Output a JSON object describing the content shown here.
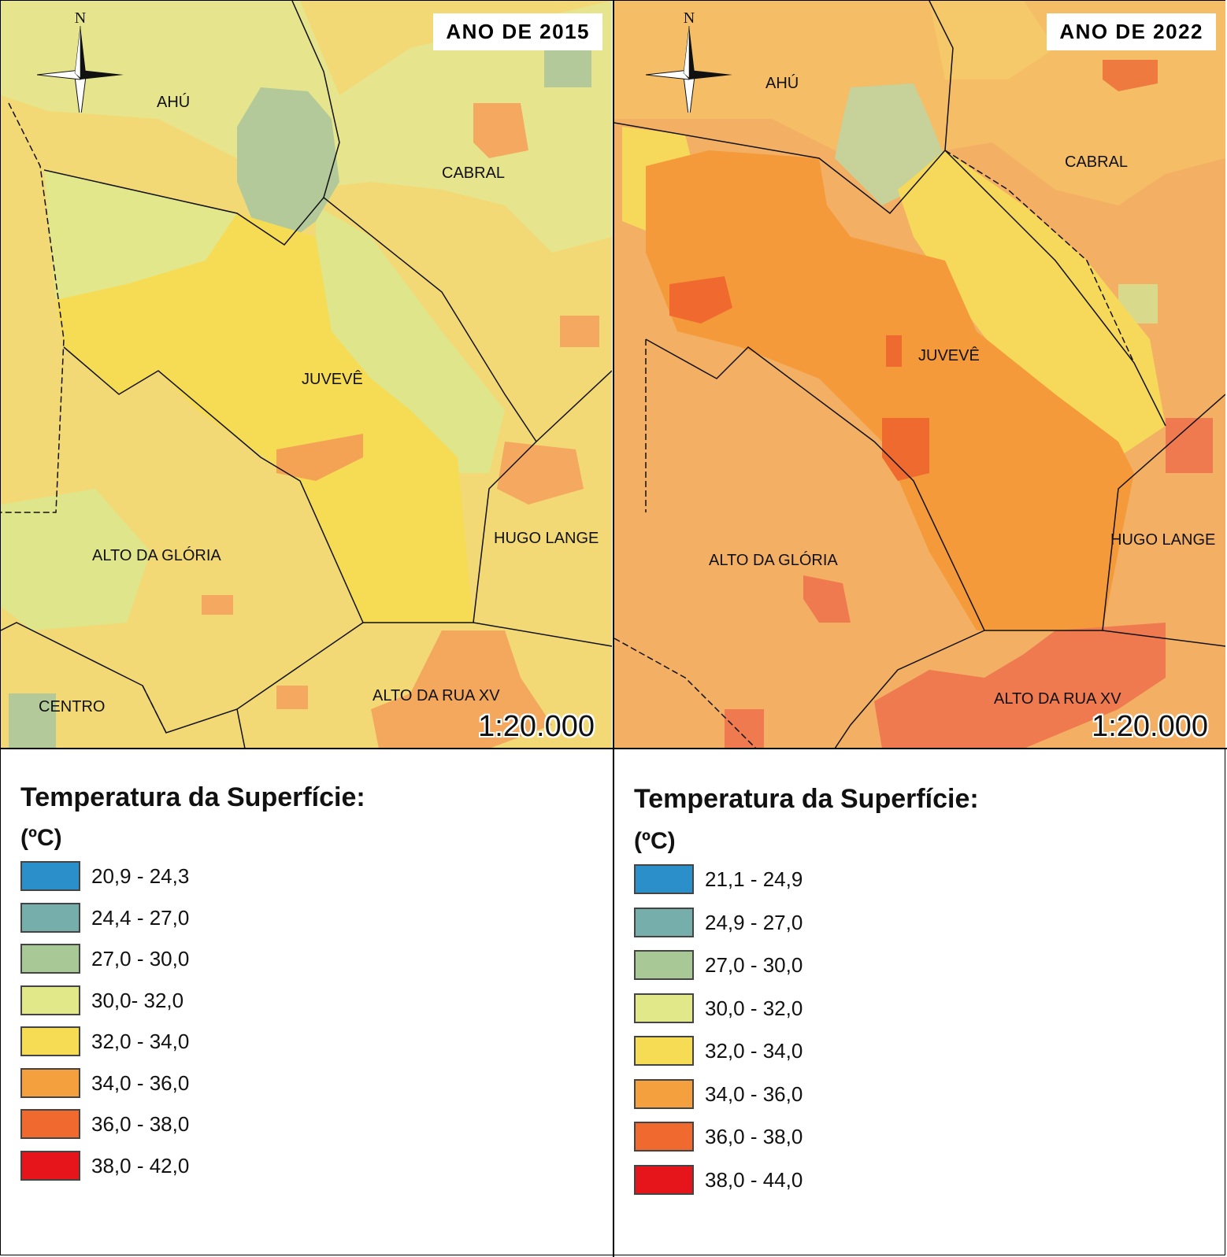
{
  "maps": [
    {
      "title": "ANO DE 2015",
      "scale": "1:20.000",
      "north_label": "N",
      "places": [
        {
          "label": "AHÚ",
          "key": "ahu"
        },
        {
          "label": "CABRAL",
          "key": "cabral"
        },
        {
          "label": "JUVEVÊ",
          "key": "juveve"
        },
        {
          "label": "HUGO LANGE",
          "key": "hugo"
        },
        {
          "label": "ALTO DA GLÓRIA",
          "key": "gloria"
        },
        {
          "label": "CENTRO",
          "key": "centro"
        },
        {
          "label": "ALTO DA RUA XV",
          "key": "ruaxv"
        }
      ],
      "legend": {
        "title": "Temperatura da Superfície:",
        "unit": "(ºC)",
        "classes": [
          {
            "label": "20,9 - 24,3",
            "color": "#2b8fc9"
          },
          {
            "label": "24,4 - 27,0",
            "color": "#75aeab"
          },
          {
            "label": "27,0 - 30,0",
            "color": "#a8c996"
          },
          {
            "label": "30,0- 32,0",
            "color": "#e1e889"
          },
          {
            "label": "32,0 - 34,0",
            "color": "#f6dc55"
          },
          {
            "label": "34,0 - 36,0",
            "color": "#f4a03f"
          },
          {
            "label": "36,0 - 38,0",
            "color": "#f06a2f"
          },
          {
            "label": "38,0 - 42,0",
            "color": "#e5151b"
          }
        ]
      }
    },
    {
      "title": "ANO DE 2022",
      "scale": "1:20.000",
      "north_label": "N",
      "places": [
        {
          "label": "AHÚ",
          "key": "ahu"
        },
        {
          "label": "CABRAL",
          "key": "cabral"
        },
        {
          "label": "JUVEVÊ",
          "key": "juveve"
        },
        {
          "label": "HUGO LANGE",
          "key": "hugo"
        },
        {
          "label": "ALTO DA GLÓRIA",
          "key": "gloria"
        },
        {
          "label": "ALTO DA RUA XV",
          "key": "ruaxv"
        }
      ],
      "legend": {
        "title": "Temperatura da Superfície:",
        "unit": "(ºC)",
        "classes": [
          {
            "label": "21,1 - 24,9",
            "color": "#2b8fc9"
          },
          {
            "label": "24,9 - 27,0",
            "color": "#75aeab"
          },
          {
            "label": "27,0 - 30,0",
            "color": "#a8c996"
          },
          {
            "label": "30,0 - 32,0",
            "color": "#e1e889"
          },
          {
            "label": "32,0 - 34,0",
            "color": "#f6dc55"
          },
          {
            "label": "34,0 - 36,0",
            "color": "#f4a03f"
          },
          {
            "label": "36,0 - 38,0",
            "color": "#f06a2f"
          },
          {
            "label": "38,0 - 44,0",
            "color": "#e5151b"
          }
        ]
      }
    }
  ]
}
